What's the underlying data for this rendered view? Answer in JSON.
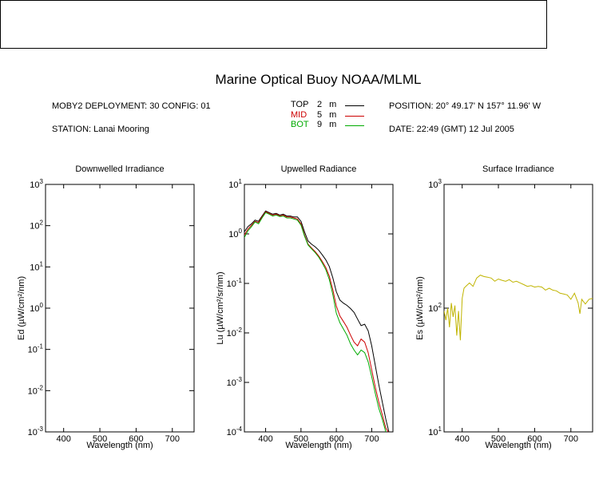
{
  "title": "Marine Optical Buoy NOAA/MLML",
  "header": {
    "deployment": "MOBY2 DEPLOYMENT: 30 CONFIG: 01",
    "station": "STATION: Lanai Mooring",
    "position": "POSITION: 20° 49.17' N   157° 11.96' W",
    "date": "DATE: 22:49 (GMT) 12 Jul 2005"
  },
  "legend": [
    {
      "name": "TOP",
      "depth": "2",
      "unit": "m",
      "color": "#000000"
    },
    {
      "name": "MID",
      "depth": "5",
      "unit": "m",
      "color": "#cc0000"
    },
    {
      "name": "BOT",
      "depth": "9",
      "unit": "m",
      "color": "#00aa00"
    }
  ],
  "chart_data": [
    {
      "type": "line",
      "title": "Downwelled Irradiance",
      "xlabel": "Wavelength (nm)",
      "ylabel": "Ed  (µW/cm²/nm)",
      "xlim": [
        350,
        760
      ],
      "ylim": [
        0.001,
        1000
      ],
      "yscale": "log",
      "xticks": [
        "400",
        "500",
        "600",
        "700"
      ],
      "yticks": [
        {
          "base": "10",
          "exp": "-3"
        },
        {
          "base": "10",
          "exp": "-2"
        },
        {
          "base": "10",
          "exp": "-1"
        },
        {
          "base": "10",
          "exp": "0"
        },
        {
          "base": "10",
          "exp": "1"
        },
        {
          "base": "10",
          "exp": "2"
        },
        {
          "base": "10",
          "exp": "3"
        }
      ],
      "series": []
    },
    {
      "type": "line",
      "title": "Upwelled Radiance",
      "xlabel": "Wavelength (nm)",
      "ylabel": "Lu  (µW/cm²/sr/nm)",
      "xlim": [
        340,
        760
      ],
      "ylim": [
        0.0001,
        10
      ],
      "yscale": "log",
      "xticks": [
        "400",
        "500",
        "600",
        "700"
      ],
      "yticks": [
        {
          "base": "10",
          "exp": "-4"
        },
        {
          "base": "10",
          "exp": "-3"
        },
        {
          "base": "10",
          "exp": "-2"
        },
        {
          "base": "10",
          "exp": "-1"
        },
        {
          "base": "10",
          "exp": "0"
        },
        {
          "base": "10",
          "exp": "1"
        }
      ],
      "series": [
        {
          "name": "TOP",
          "color": "#000000",
          "x": [
            340,
            350,
            360,
            370,
            380,
            390,
            400,
            410,
            420,
            430,
            440,
            450,
            460,
            470,
            480,
            490,
            500,
            510,
            520,
            530,
            540,
            550,
            560,
            570,
            580,
            590,
            600,
            610,
            620,
            630,
            640,
            650,
            660,
            670,
            680,
            690,
            700,
            710,
            720,
            730,
            740,
            750
          ],
          "y": [
            1.1,
            1.4,
            1.6,
            1.9,
            1.8,
            2.3,
            2.9,
            2.7,
            2.5,
            2.6,
            2.4,
            2.5,
            2.3,
            2.3,
            2.2,
            2.2,
            1.8,
            1.1,
            0.72,
            0.62,
            0.55,
            0.47,
            0.38,
            0.3,
            0.22,
            0.13,
            0.068,
            0.046,
            0.04,
            0.036,
            0.031,
            0.026,
            0.019,
            0.014,
            0.015,
            0.011,
            0.0055,
            0.0022,
            0.0009,
            0.0004,
            0.00018,
            9e-05
          ]
        },
        {
          "name": "MID",
          "color": "#cc0000",
          "x": [
            340,
            350,
            360,
            370,
            380,
            390,
            400,
            410,
            420,
            430,
            440,
            450,
            460,
            470,
            480,
            490,
            500,
            510,
            520,
            530,
            540,
            550,
            560,
            570,
            580,
            590,
            600,
            610,
            620,
            630,
            640,
            650,
            660,
            670,
            680,
            690,
            700,
            710,
            720,
            730,
            740,
            750
          ],
          "y": [
            0.95,
            1.25,
            1.5,
            1.8,
            1.7,
            2.2,
            2.8,
            2.6,
            2.4,
            2.5,
            2.3,
            2.4,
            2.2,
            2.2,
            2.1,
            2.0,
            1.6,
            0.95,
            0.62,
            0.52,
            0.44,
            0.36,
            0.28,
            0.21,
            0.14,
            0.075,
            0.035,
            0.022,
            0.017,
            0.013,
            0.009,
            0.0065,
            0.0055,
            0.0075,
            0.0065,
            0.004,
            0.0018,
            0.0008,
            0.0004,
            0.00022,
            0.00012,
            9e-05
          ]
        },
        {
          "name": "BOT",
          "color": "#00aa00",
          "x": [
            340,
            350,
            360,
            370,
            380,
            390,
            400,
            410,
            420,
            430,
            440,
            450,
            460,
            470,
            480,
            490,
            500,
            510,
            520,
            530,
            540,
            550,
            560,
            570,
            580,
            590,
            600,
            610,
            620,
            630,
            640,
            650,
            660,
            670,
            680,
            690,
            700,
            710,
            720,
            730,
            740,
            750
          ],
          "y": [
            0.85,
            1.15,
            1.4,
            1.75,
            1.6,
            2.1,
            2.7,
            2.5,
            2.3,
            2.4,
            2.25,
            2.3,
            2.1,
            2.1,
            2.0,
            1.9,
            1.5,
            0.9,
            0.6,
            0.5,
            0.42,
            0.34,
            0.26,
            0.19,
            0.12,
            0.06,
            0.025,
            0.016,
            0.012,
            0.009,
            0.006,
            0.0045,
            0.0036,
            0.0045,
            0.004,
            0.0026,
            0.0013,
            0.0006,
            0.0003,
            0.00018,
            0.0001,
            9e-05
          ]
        }
      ]
    },
    {
      "type": "line",
      "title": "Surface Irradiance",
      "xlabel": "Wavelength (nm)",
      "ylabel": "Es  (µW/cm²/nm)",
      "xlim": [
        350,
        760
      ],
      "ylim": [
        10,
        1000
      ],
      "yscale": "log",
      "xticks": [
        "400",
        "500",
        "600",
        "700"
      ],
      "yticks": [
        {
          "base": "10",
          "exp": "1"
        },
        {
          "base": "10",
          "exp": "2"
        },
        {
          "base": "10",
          "exp": "3"
        }
      ],
      "series": [
        {
          "name": "Es",
          "color": "#c0b400",
          "x": [
            350,
            355,
            360,
            365,
            370,
            375,
            380,
            385,
            390,
            395,
            400,
            405,
            410,
            420,
            430,
            440,
            450,
            460,
            470,
            480,
            490,
            500,
            510,
            520,
            530,
            540,
            550,
            560,
            570,
            580,
            590,
            600,
            610,
            620,
            630,
            640,
            650,
            660,
            670,
            680,
            690,
            700,
            710,
            720,
            725,
            730,
            740,
            750,
            760
          ],
          "y": [
            95,
            80,
            100,
            70,
            110,
            85,
            105,
            60,
            95,
            55,
            120,
            145,
            150,
            160,
            150,
            175,
            185,
            180,
            178,
            175,
            165,
            172,
            168,
            165,
            170,
            162,
            165,
            160,
            155,
            150,
            152,
            148,
            150,
            148,
            140,
            145,
            140,
            138,
            132,
            130,
            128,
            118,
            132,
            110,
            90,
            118,
            108,
            118,
            120
          ]
        }
      ]
    }
  ]
}
